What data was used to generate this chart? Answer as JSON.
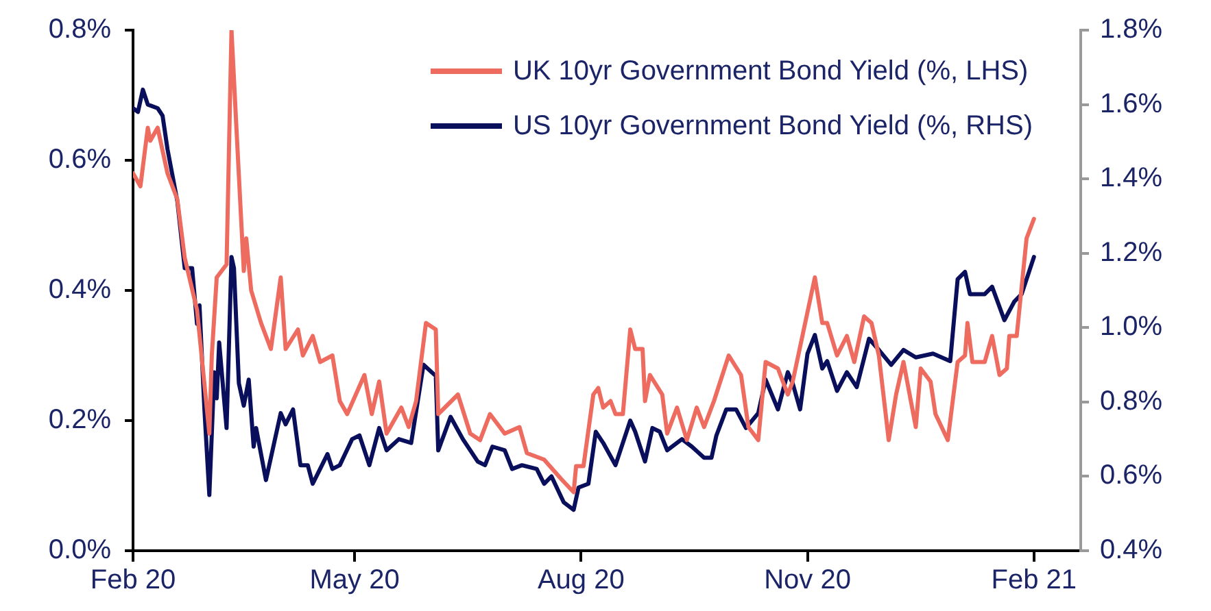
{
  "chart_data": {
    "type": "line",
    "legend": "top right",
    "grid": false,
    "marker": "none",
    "line_style": "solid",
    "xlim": [
      "2020-02-01",
      "2021-02-20"
    ],
    "xticks": [
      {
        "value": "2020-02-01",
        "label": "Feb 20"
      },
      {
        "value": "2020-05-01",
        "label": "May 20"
      },
      {
        "value": "2020-08-01",
        "label": "Aug 20"
      },
      {
        "value": "2020-11-01",
        "label": "Nov 20"
      },
      {
        "value": "2021-02-01",
        "label": "Feb 21"
      }
    ],
    "ylim": [
      0,
      0.8
    ],
    "yticks": [
      {
        "value": 0,
        "label": "0.0%"
      },
      {
        "value": 0.2,
        "label": "0.2%"
      },
      {
        "value": 0.4,
        "label": "0.4%"
      },
      {
        "value": 0.6,
        "label": "0.6%"
      },
      {
        "value": 0.8,
        "label": "0.8%"
      }
    ],
    "y2lim": [
      0.4,
      1.8
    ],
    "y2ticks": [
      {
        "value": 0.4,
        "label": "0.4%"
      },
      {
        "value": 0.6,
        "label": "0.6%"
      },
      {
        "value": 0.8,
        "label": "0.8%"
      },
      {
        "value": 1.0,
        "label": "1.0%"
      },
      {
        "value": 1.2,
        "label": "1.2%"
      },
      {
        "value": 1.4,
        "label": "1.4%"
      },
      {
        "value": 1.6,
        "label": "1.6%"
      },
      {
        "value": 1.8,
        "label": "1.8%"
      }
    ],
    "series": [
      {
        "name": "UK 10yr Government Bond Yield (%, LHS)",
        "color": "#ee6b60",
        "axis": "y",
        "x": [
          "2020-02-01",
          "2020-02-04",
          "2020-02-07",
          "2020-02-08",
          "2020-02-11",
          "2020-02-15",
          "2020-02-19",
          "2020-02-22",
          "2020-02-27",
          "2020-03-03",
          "2020-03-04",
          "2020-03-06",
          "2020-03-10",
          "2020-03-12",
          "2020-03-14",
          "2020-03-17",
          "2020-03-18",
          "2020-03-20",
          "2020-03-24",
          "2020-03-28",
          "2020-04-01",
          "2020-04-03",
          "2020-04-08",
          "2020-04-10",
          "2020-04-14",
          "2020-04-17",
          "2020-04-22",
          "2020-04-25",
          "2020-04-28",
          "2020-05-05",
          "2020-05-08",
          "2020-05-11",
          "2020-05-14",
          "2020-05-20",
          "2020-05-23",
          "2020-05-26",
          "2020-05-30",
          "2020-06-03",
          "2020-06-04",
          "2020-06-12",
          "2020-06-17",
          "2020-06-21",
          "2020-06-25",
          "2020-07-01",
          "2020-07-07",
          "2020-07-10",
          "2020-07-17",
          "2020-07-24",
          "2020-07-29",
          "2020-07-30",
          "2020-08-02",
          "2020-08-06",
          "2020-08-08",
          "2020-08-10",
          "2020-08-13",
          "2020-08-15",
          "2020-08-18",
          "2020-08-21",
          "2020-08-23",
          "2020-08-26",
          "2020-08-27",
          "2020-08-29",
          "2020-09-03",
          "2020-09-05",
          "2020-09-09",
          "2020-09-13",
          "2020-09-17",
          "2020-09-20",
          "2020-09-24",
          "2020-09-30",
          "2020-10-05",
          "2020-10-08",
          "2020-10-12",
          "2020-10-15",
          "2020-10-20",
          "2020-10-24",
          "2020-10-26",
          "2020-11-04",
          "2020-11-07",
          "2020-11-09",
          "2020-11-13",
          "2020-11-17",
          "2020-11-20",
          "2020-11-24",
          "2020-11-27",
          "2020-11-30",
          "2020-12-04",
          "2020-12-07",
          "2020-12-10",
          "2020-12-15",
          "2020-12-17",
          "2020-12-21",
          "2020-12-23",
          "2020-12-28",
          "2021-01-01",
          "2021-01-04",
          "2021-01-05",
          "2021-01-07",
          "2021-01-12",
          "2021-01-15",
          "2021-01-18",
          "2021-01-21",
          "2021-01-22",
          "2021-01-25",
          "2021-01-29",
          "2021-02-01"
        ],
        "values": [
          0.58,
          0.56,
          0.65,
          0.63,
          0.65,
          0.58,
          0.54,
          0.45,
          0.37,
          0.18,
          0.3,
          0.42,
          0.44,
          0.8,
          0.65,
          0.43,
          0.48,
          0.4,
          0.35,
          0.31,
          0.42,
          0.31,
          0.34,
          0.3,
          0.33,
          0.29,
          0.3,
          0.23,
          0.21,
          0.27,
          0.21,
          0.26,
          0.18,
          0.22,
          0.19,
          0.23,
          0.35,
          0.34,
          0.21,
          0.24,
          0.18,
          0.17,
          0.21,
          0.18,
          0.19,
          0.15,
          0.14,
          0.11,
          0.09,
          0.13,
          0.13,
          0.24,
          0.25,
          0.22,
          0.23,
          0.21,
          0.21,
          0.34,
          0.31,
          0.31,
          0.23,
          0.27,
          0.24,
          0.18,
          0.22,
          0.17,
          0.22,
          0.19,
          0.23,
          0.3,
          0.27,
          0.19,
          0.17,
          0.29,
          0.28,
          0.24,
          0.26,
          0.42,
          0.35,
          0.35,
          0.3,
          0.33,
          0.29,
          0.36,
          0.35,
          0.3,
          0.17,
          0.24,
          0.29,
          0.19,
          0.28,
          0.26,
          0.21,
          0.17,
          0.29,
          0.3,
          0.35,
          0.29,
          0.29,
          0.33,
          0.27,
          0.28,
          0.33,
          0.33,
          0.48,
          0.51
        ]
      },
      {
        "name": "US 10yr Government Bond Yield (%, RHS)",
        "color": "#0a0f5c",
        "axis": "y2",
        "x": [
          "2020-02-01",
          "2020-02-03",
          "2020-02-05",
          "2020-02-07",
          "2020-02-11",
          "2020-02-13",
          "2020-02-15",
          "2020-02-19",
          "2020-02-22",
          "2020-02-25",
          "2020-02-27",
          "2020-02-28",
          "2020-03-01",
          "2020-03-03",
          "2020-03-05",
          "2020-03-06",
          "2020-03-07",
          "2020-03-10",
          "2020-03-12",
          "2020-03-13",
          "2020-03-15",
          "2020-03-17",
          "2020-03-19",
          "2020-03-21",
          "2020-03-22",
          "2020-03-26",
          "2020-04-01",
          "2020-04-03",
          "2020-04-06",
          "2020-04-09",
          "2020-04-12",
          "2020-04-14",
          "2020-04-17",
          "2020-04-20",
          "2020-04-22",
          "2020-04-25",
          "2020-04-30",
          "2020-05-03",
          "2020-05-07",
          "2020-05-11",
          "2020-05-14",
          "2020-05-19",
          "2020-05-24",
          "2020-05-29",
          "2020-06-03",
          "2020-06-04",
          "2020-06-09",
          "2020-06-14",
          "2020-06-20",
          "2020-06-23",
          "2020-06-26",
          "2020-07-01",
          "2020-07-04",
          "2020-07-08",
          "2020-07-14",
          "2020-07-17",
          "2020-07-20",
          "2020-07-25",
          "2020-07-29",
          "2020-07-31",
          "2020-08-04",
          "2020-08-07",
          "2020-08-10",
          "2020-08-15",
          "2020-08-21",
          "2020-08-23",
          "2020-08-27",
          "2020-08-30",
          "2020-09-02",
          "2020-09-05",
          "2020-09-11",
          "2020-09-15",
          "2020-09-20",
          "2020-09-23",
          "2020-09-25",
          "2020-09-29",
          "2020-10-03",
          "2020-10-07",
          "2020-10-12",
          "2020-10-15",
          "2020-10-20",
          "2020-10-24",
          "2020-10-26",
          "2020-10-29",
          "2020-11-01",
          "2020-11-04",
          "2020-11-07",
          "2020-11-09",
          "2020-11-13",
          "2020-11-17",
          "2020-11-21",
          "2020-11-26",
          "2020-11-30",
          "2020-12-05",
          "2020-12-10",
          "2020-12-15",
          "2020-12-22",
          "2020-12-29",
          "2021-01-01",
          "2021-01-04",
          "2021-01-06",
          "2021-01-12",
          "2021-01-15",
          "2021-01-20",
          "2021-01-24",
          "2021-01-27",
          "2021-02-01"
        ],
        "values": [
          1.59,
          1.58,
          1.64,
          1.6,
          1.59,
          1.57,
          1.48,
          1.34,
          1.16,
          1.16,
          1.01,
          1.06,
          0.78,
          0.55,
          0.88,
          0.81,
          0.96,
          0.73,
          1.19,
          1.16,
          0.85,
          0.79,
          0.86,
          0.68,
          0.73,
          0.59,
          0.77,
          0.74,
          0.78,
          0.63,
          0.63,
          0.58,
          0.62,
          0.66,
          0.62,
          0.63,
          0.7,
          0.71,
          0.63,
          0.73,
          0.67,
          0.7,
          0.69,
          0.9,
          0.87,
          0.67,
          0.76,
          0.7,
          0.64,
          0.63,
          0.68,
          0.67,
          0.62,
          0.63,
          0.62,
          0.58,
          0.6,
          0.53,
          0.51,
          0.57,
          0.58,
          0.72,
          0.69,
          0.63,
          0.75,
          0.72,
          0.64,
          0.73,
          0.72,
          0.67,
          0.7,
          0.68,
          0.65,
          0.65,
          0.71,
          0.78,
          0.78,
          0.73,
          0.77,
          0.86,
          0.78,
          0.88,
          0.85,
          0.78,
          0.93,
          0.98,
          0.89,
          0.91,
          0.83,
          0.88,
          0.84,
          0.97,
          0.94,
          0.9,
          0.94,
          0.92,
          0.93,
          0.91,
          1.13,
          1.15,
          1.09,
          1.09,
          1.11,
          1.02,
          1.07,
          1.09,
          1.19
        ]
      }
    ]
  }
}
